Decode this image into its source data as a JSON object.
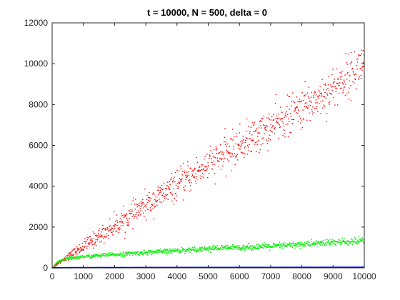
{
  "chart_data": {
    "type": "scatter",
    "title": "t = 10000, N = 500, delta = 0",
    "xlabel": "",
    "ylabel": "",
    "xlim": [
      0,
      10000
    ],
    "ylim": [
      0,
      12000
    ],
    "grid": false,
    "x_ticks": [
      0,
      1000,
      2000,
      3000,
      4000,
      5000,
      6000,
      7000,
      8000,
      9000,
      10000
    ],
    "y_ticks": [
      0,
      2000,
      4000,
      6000,
      8000,
      10000,
      12000
    ],
    "series": [
      {
        "color": "#ff0000",
        "x": [
          0,
          200,
          500,
          1000,
          2000,
          3000,
          4000,
          5000,
          6000,
          7000,
          8000,
          9000,
          9500,
          10000
        ],
        "y": [
          0,
          250,
          550,
          1050,
          2050,
          3050,
          4050,
          5050,
          6000,
          6900,
          7800,
          8800,
          9400,
          10100
        ],
        "spread": [
          50,
          80,
          150,
          300,
          500,
          600,
          700,
          800,
          850,
          900,
          950,
          1000,
          1000,
          1000
        ],
        "y_max_observed": 11300
      },
      {
        "color": "#00ee00",
        "x": [
          0,
          200,
          500,
          1000,
          2000,
          3000,
          4000,
          5000,
          6000,
          7000,
          8000,
          9000,
          10000
        ],
        "y": [
          0,
          300,
          450,
          550,
          650,
          750,
          850,
          950,
          1000,
          1050,
          1150,
          1250,
          1300
        ],
        "spread": [
          30,
          60,
          80,
          90,
          100,
          110,
          120,
          130,
          140,
          150,
          160,
          180,
          200
        ]
      },
      {
        "color": "#0000ff",
        "x": [
          0,
          1000,
          2000,
          3000,
          4000,
          5000,
          6000,
          7000,
          8000,
          9000,
          10000
        ],
        "y": [
          5,
          10,
          12,
          14,
          16,
          18,
          20,
          22,
          24,
          26,
          28
        ],
        "spread": [
          5,
          5,
          5,
          5,
          5,
          5,
          5,
          5,
          5,
          5,
          5
        ]
      }
    ]
  }
}
